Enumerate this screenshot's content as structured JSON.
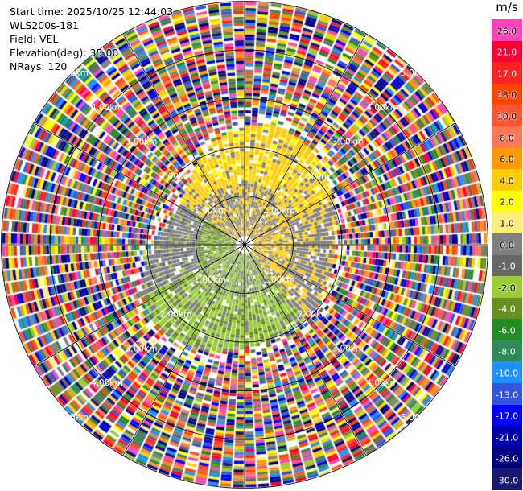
{
  "info": {
    "start_time": "Start time: 2025/10/25 12:44:03",
    "site": "WLS200s-181",
    "field": "Field: VEL",
    "elevation": "Elevation(deg): 35.00",
    "nrays": "NRays: 120"
  },
  "colorbar": {
    "unit": "m/s",
    "segments": [
      {
        "label": "26.0",
        "color": "#ff44bb"
      },
      {
        "label": "21.0",
        "color": "#ff0033"
      },
      {
        "label": "17.0",
        "color": "#ff2222"
      },
      {
        "label": "13.0",
        "color": "#ff4400"
      },
      {
        "label": "10.0",
        "color": "#ff5533"
      },
      {
        "label": "8.0",
        "color": "#ff7755"
      },
      {
        "label": "6.0",
        "color": "#ff9900"
      },
      {
        "label": "4.0",
        "color": "#ffcc00"
      },
      {
        "label": "2.0",
        "color": "#ffff00"
      },
      {
        "label": "1.0",
        "color": "#ffee77"
      },
      {
        "label": "0.0",
        "color": "#808080"
      },
      {
        "label": "-1.0",
        "color": "#666666"
      },
      {
        "label": "-2.0",
        "color": "#99cc33"
      },
      {
        "label": "-4.0",
        "color": "#6b8e23"
      },
      {
        "label": "-6.0",
        "color": "#228b22"
      },
      {
        "label": "-8.0",
        "color": "#2e8b57"
      },
      {
        "label": "-10.0",
        "color": "#1e90ff"
      },
      {
        "label": "-13.0",
        "color": "#3355dd"
      },
      {
        "label": "-17.0",
        "color": "#0000ff"
      },
      {
        "label": "-21.0",
        "color": "#0000aa"
      },
      {
        "label": "-26.0",
        "color": "#000080"
      },
      {
        "label": "-30.0",
        "color": "#191970"
      }
    ]
  },
  "chart_data": {
    "type": "heatmap",
    "projection": "PPI polar",
    "field": "VEL",
    "units": "m/s",
    "nrays": 120,
    "range_rings_km": [
      1.0,
      2.0,
      3.0,
      4.0,
      5.0
    ],
    "range_labels": [
      "1.00km",
      "2.00km",
      "3.00km",
      "4.00km",
      "5.00km"
    ],
    "spoke_angles_deg": [
      0,
      30,
      60,
      90,
      120,
      150,
      180,
      210,
      240,
      270,
      300,
      330
    ]
  }
}
